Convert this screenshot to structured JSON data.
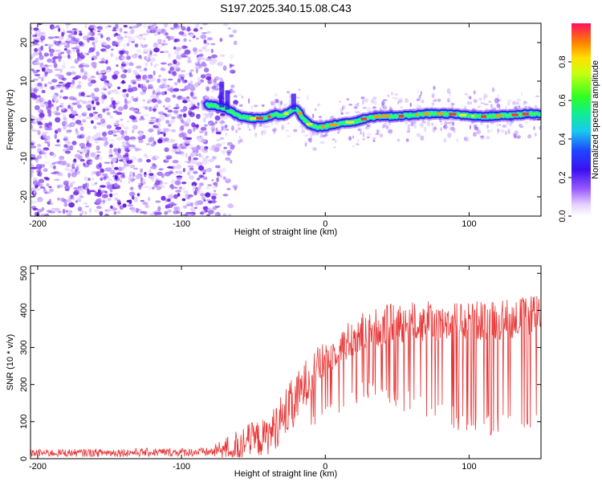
{
  "title": "S197.2025.340.15.08.C43",
  "chart_data": [
    {
      "type": "heatmap",
      "name": "spectrogram",
      "xlabel": "Height of straight line (km)",
      "ylabel": "Frequency (Hz)",
      "xlim": [
        -205,
        150
      ],
      "ylim": [
        -25,
        25
      ],
      "xticks": [
        -200,
        -100,
        0,
        100
      ],
      "yticks": [
        -20,
        -10,
        0,
        10,
        20
      ],
      "noise_region_x": [
        -205,
        -70
      ],
      "signal_track": {
        "x": [
          -82,
          -75,
          -70,
          -65,
          -60,
          -55,
          -50,
          -45,
          -40,
          -35,
          -30,
          -25,
          -20,
          -15,
          -10,
          -5,
          0,
          10,
          20,
          30,
          40,
          50,
          60,
          70,
          80,
          90,
          100,
          110,
          120,
          130,
          140,
          150
        ],
        "y": [
          3.8,
          3.5,
          3.0,
          2.0,
          1.0,
          0.5,
          0.3,
          0.4,
          0.6,
          1.5,
          1.0,
          2.0,
          3.0,
          0.0,
          -1.5,
          -2.0,
          -1.8,
          -1.0,
          -0.5,
          0.5,
          1.0,
          0.8,
          1.2,
          1.5,
          1.6,
          1.4,
          1.0,
          0.8,
          1.0,
          1.2,
          1.5,
          1.6
        ]
      },
      "colorbar": {
        "label": "Normalized spectral amplitude",
        "range": [
          0,
          1
        ],
        "ticks": [
          "0.0",
          "0.2",
          "0.4",
          "0.6",
          "0.8"
        ],
        "tick_values": [
          0.0,
          0.2,
          0.4,
          0.6,
          0.8
        ]
      }
    },
    {
      "type": "line",
      "name": "snr",
      "xlabel": "Height of straight line (km)",
      "ylabel": "SNR (10 * v/v)",
      "xlim": [
        -205,
        150
      ],
      "ylim": [
        0,
        520
      ],
      "xticks": [
        -200,
        -100,
        0,
        100
      ],
      "yticks": [
        0,
        100,
        200,
        300,
        400,
        500
      ],
      "color": "#e83535",
      "envelope": {
        "x": [
          -205,
          -80,
          -65,
          -55,
          -40,
          -30,
          -20,
          -10,
          0,
          10,
          20,
          30,
          40,
          60,
          80,
          100,
          120,
          140,
          150
        ],
        "base": [
          15,
          18,
          30,
          45,
          60,
          110,
          160,
          230,
          265,
          300,
          330,
          350,
          360,
          370,
          370,
          370,
          375,
          385,
          390
        ],
        "amp": [
          10,
          12,
          40,
          50,
          50,
          70,
          70,
          60,
          50,
          40,
          60,
          50,
          55,
          55,
          55,
          55,
          55,
          55,
          50
        ],
        "dropout_min": [
          15,
          15,
          20,
          20,
          20,
          40,
          60,
          80,
          100,
          120,
          140,
          150,
          150,
          120,
          90,
          70,
          60,
          60,
          60
        ]
      }
    }
  ]
}
